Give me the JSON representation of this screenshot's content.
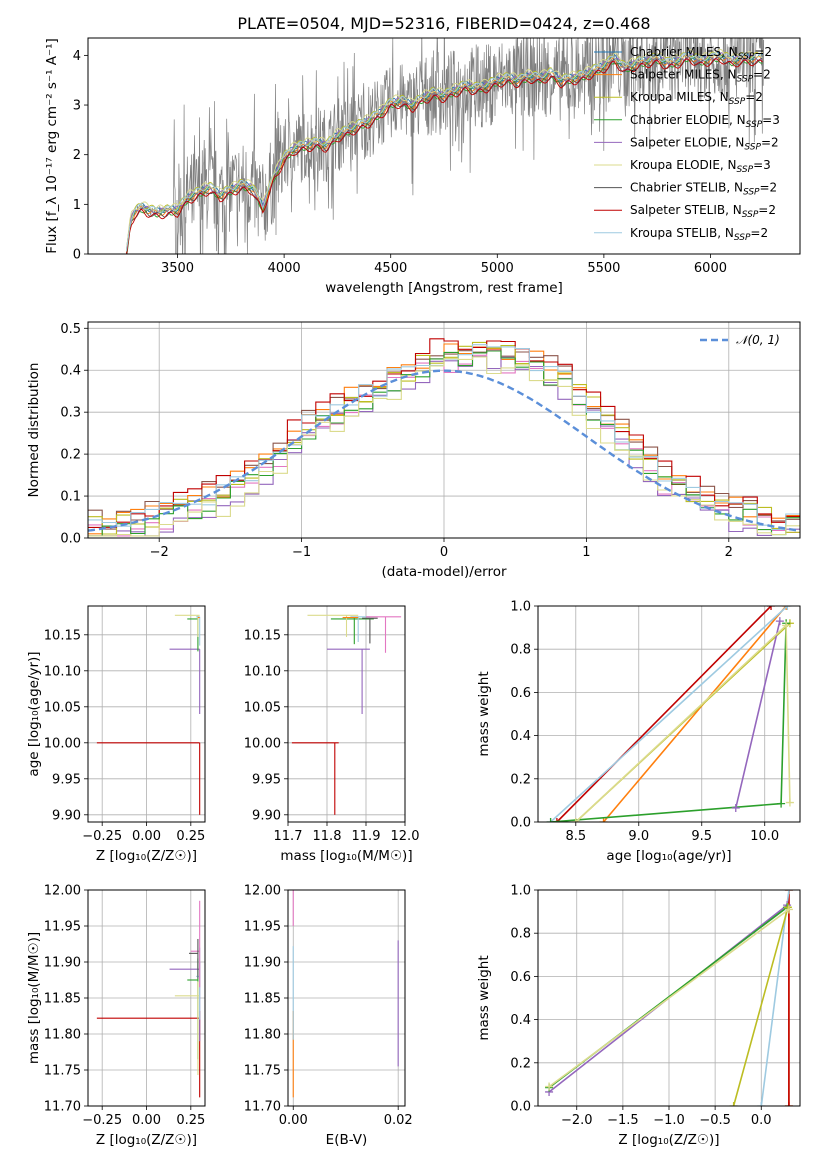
{
  "chart_data": [
    {
      "type": "line",
      "panel": "spectrum",
      "title": "PLATE=0504, MJD=52316, FIBERID=0424, z=0.468",
      "xlabel": "wavelength [Angstrom, rest frame]",
      "ylabel": "Flux [f_λ 10⁻¹⁷ erg cm⁻² s⁻¹ A⁻¹]",
      "xlim": [
        3080,
        6420
      ],
      "ylim": [
        0,
        4.35
      ],
      "xticks": [
        3500,
        4000,
        4500,
        5000,
        5500,
        6000
      ],
      "yticks": [
        0,
        1,
        2,
        3,
        4
      ],
      "grid": false,
      "legend_position": "upper right",
      "observed_spectrum": {
        "color": "#808080",
        "x": [
          3260,
          3280,
          3300,
          3330,
          3360,
          3400,
          3450,
          3500,
          3550,
          3600,
          3650,
          3700,
          3750,
          3800,
          3850,
          3900,
          3950,
          4000,
          4050,
          4100,
          4150,
          4200,
          4250,
          4300,
          4350,
          4400,
          4450,
          4500,
          4550,
          4600,
          4650,
          4700,
          4750,
          4800,
          4850,
          4900,
          4950,
          5000,
          5050,
          5100,
          5150,
          5200,
          5250,
          5300,
          5350,
          5400,
          5450,
          5500,
          5550,
          5600,
          5650,
          5700,
          5750,
          5800,
          5850,
          5900,
          5950,
          6000,
          6050,
          6100,
          6150,
          6200
        ],
        "y": [
          0.0,
          0.7,
          0.85,
          0.95,
          0.9,
          0.85,
          0.88,
          0.9,
          1.15,
          1.25,
          1.35,
          1.2,
          1.3,
          1.4,
          1.35,
          0.95,
          1.55,
          1.95,
          2.15,
          2.2,
          2.25,
          2.2,
          2.4,
          2.5,
          2.6,
          2.7,
          2.85,
          3.05,
          3.1,
          3.0,
          3.15,
          3.25,
          3.2,
          3.3,
          3.4,
          3.35,
          3.4,
          3.5,
          3.55,
          3.5,
          3.6,
          3.55,
          3.65,
          3.5,
          3.55,
          3.6,
          3.7,
          3.8,
          3.95,
          3.75,
          3.85,
          3.9,
          3.95,
          3.85,
          3.9,
          4.0,
          3.9,
          3.95,
          4.0,
          3.9,
          3.95,
          3.95
        ]
      },
      "model_x": [
        3260,
        3280,
        3300,
        3330,
        3360,
        3400,
        3450,
        3500,
        3550,
        3600,
        3650,
        3700,
        3750,
        3800,
        3850,
        3900,
        3950,
        4000,
        4050,
        4100,
        4150,
        4200,
        4250,
        4300,
        4350,
        4400,
        4450,
        4500,
        4550,
        4600,
        4650,
        4700,
        4750,
        4800,
        4850,
        4900,
        4950,
        5000,
        5050,
        5100,
        5150,
        5200,
        5250,
        5300,
        5350,
        5400,
        5450,
        5500,
        5550,
        5600,
        5650,
        5700,
        5750,
        5800,
        5850,
        5900,
        5950,
        6000,
        6050,
        6100,
        6150,
        6200
      ],
      "model_y": [
        0.0,
        0.7,
        0.85,
        0.95,
        0.9,
        0.85,
        0.88,
        0.9,
        1.15,
        1.25,
        1.35,
        1.2,
        1.3,
        1.4,
        1.35,
        0.95,
        1.55,
        1.95,
        2.15,
        2.2,
        2.25,
        2.2,
        2.4,
        2.5,
        2.6,
        2.7,
        2.85,
        3.05,
        3.1,
        3.0,
        3.15,
        3.25,
        3.2,
        3.3,
        3.4,
        3.35,
        3.4,
        3.5,
        3.55,
        3.5,
        3.6,
        3.55,
        3.65,
        3.5,
        3.55,
        3.6,
        3.7,
        3.8,
        3.95,
        3.75,
        3.85,
        3.9,
        3.95,
        3.85,
        3.9,
        4.0,
        3.9,
        3.95,
        4.0,
        3.9,
        3.95,
        3.95
      ],
      "series": [
        {
          "name": "Chabrier MILES, N_SSP=2",
          "name_main": "Chabrier MILES, N",
          "name_sub": "SSP",
          "name_tail": "=2",
          "color": "#1f77b4",
          "offset": 0.02
        },
        {
          "name": "Salpeter MILES, N_SSP=2",
          "name_main": "Salpeter MILES, N",
          "name_sub": "SSP",
          "name_tail": "=2",
          "color": "#ff7f0e",
          "offset": -0.03
        },
        {
          "name": "Kroupa MILES, N_SSP=2",
          "name_main": "Kroupa MILES, N",
          "name_sub": "SSP",
          "name_tail": "=2",
          "color": "#bcbd22",
          "offset": 0.05
        },
        {
          "name": "Chabrier ELODIE, N_SSP=3",
          "name_main": "Chabrier ELODIE, N",
          "name_sub": "SSP",
          "name_tail": "=3",
          "color": "#2ca02c",
          "offset": -0.05
        },
        {
          "name": "Salpeter ELODIE, N_SSP=2",
          "name_main": "Salpeter ELODIE, N",
          "name_sub": "SSP",
          "name_tail": "=2",
          "color": "#9467bd",
          "offset": 0.0
        },
        {
          "name": "Kroupa ELODIE, N_SSP=3",
          "name_main": "Kroupa ELODIE, N",
          "name_sub": "SSP",
          "name_tail": "=3",
          "color": "#dbdb8d",
          "offset": 0.07
        },
        {
          "name": "Chabrier STELIB, N_SSP=2",
          "name_main": "Chabrier STELIB, N",
          "name_sub": "SSP",
          "name_tail": "=2",
          "color": "#555555",
          "offset": -0.07
        },
        {
          "name": "Salpeter STELIB, N_SSP=2",
          "name_main": "Salpeter STELIB, N",
          "name_sub": "SSP",
          "name_tail": "=2",
          "color": "#c00000",
          "offset": -0.1
        },
        {
          "name": "Kroupa STELIB, N_SSP=2",
          "name_main": "Kroupa STELIB, N",
          "name_sub": "SSP",
          "name_tail": "=2",
          "color": "#9ecae1",
          "offset": 0.03
        }
      ]
    },
    {
      "type": "line",
      "panel": "residual-histograms",
      "xlabel": "(data-model)/error",
      "ylabel": "Normed distribution",
      "xlim": [
        -2.5,
        2.5
      ],
      "ylim": [
        0,
        0.515
      ],
      "xticks": [
        -2,
        -1,
        0,
        1,
        2
      ],
      "yticks": [
        0.0,
        0.1,
        0.2,
        0.3,
        0.4,
        0.5
      ],
      "grid": true,
      "legend_position": "upper right",
      "reference": {
        "name": "N(0,1)",
        "name_display": "𝒩(0, 1)",
        "color": "#5b8fd9",
        "mean": 0,
        "sigma": 1
      },
      "histogram_bins_x": [
        -2.5,
        -2.4,
        -2.3,
        -2.2,
        -2.1,
        -2.0,
        -1.9,
        -1.8,
        -1.7,
        -1.6,
        -1.5,
        -1.4,
        -1.3,
        -1.2,
        -1.1,
        -1.0,
        -0.9,
        -0.8,
        -0.7,
        -0.6,
        -0.5,
        -0.4,
        -0.3,
        -0.2,
        -0.1,
        0.0,
        0.1,
        0.2,
        0.3,
        0.4,
        0.5,
        0.6,
        0.7,
        0.8,
        0.9,
        1.0,
        1.1,
        1.2,
        1.3,
        1.4,
        1.5,
        1.6,
        1.7,
        1.8,
        1.9,
        2.0,
        2.1,
        2.2,
        2.3,
        2.4,
        2.5
      ],
      "histogram_envelope": [
        0.02,
        0.02,
        0.03,
        0.03,
        0.04,
        0.05,
        0.06,
        0.07,
        0.09,
        0.1,
        0.12,
        0.14,
        0.17,
        0.2,
        0.23,
        0.26,
        0.28,
        0.3,
        0.32,
        0.33,
        0.35,
        0.37,
        0.39,
        0.41,
        0.42,
        0.43,
        0.44,
        0.44,
        0.44,
        0.43,
        0.42,
        0.41,
        0.39,
        0.37,
        0.34,
        0.31,
        0.27,
        0.24,
        0.2,
        0.17,
        0.14,
        0.12,
        0.1,
        0.08,
        0.07,
        0.06,
        0.05,
        0.04,
        0.03,
        0.03
      ],
      "histogram_colors": [
        "#ff7f0e",
        "#e377c2",
        "#8c564b",
        "#9467bd",
        "#bcbd22",
        "#c00000",
        "#2ca02c",
        "#9ecae1",
        "#dbdb8d"
      ],
      "histogram_offsets": [
        0.015,
        -0.012,
        0.022,
        -0.02,
        0.008,
        0.03,
        -0.006,
        0.012,
        -0.025
      ]
    },
    {
      "type": "scatter",
      "panel": "age-vs-Z",
      "xlabel": "Z [log₁₀(Z/Z☉)]",
      "ylabel": "age [log₁₀(age/yr)]",
      "xlim": [
        -0.33,
        0.33
      ],
      "ylim": [
        9.89,
        10.19
      ],
      "xticks": [
        -0.25,
        0.0,
        0.25
      ],
      "yticks": [
        9.9,
        9.95,
        10.0,
        10.05,
        10.1,
        10.15
      ],
      "grid": true,
      "points": [
        {
          "x": 0.3,
          "y": 10.0,
          "xerr_low": 0.58,
          "xerr_high": 0.0,
          "yerr_low": 0.1,
          "yerr_high": 0.0,
          "color": "#c00000"
        },
        {
          "x": 0.3,
          "y": 10.13,
          "xerr_low": 0.17,
          "xerr_high": 0.0,
          "yerr_low": 0.09,
          "yerr_high": 0.0,
          "color": "#9467bd"
        },
        {
          "x": 0.29,
          "y": 10.172,
          "xerr_low": 0.06,
          "xerr_high": 0.0,
          "yerr_low": 0.045,
          "yerr_high": 0.004,
          "color": "#2ca02c"
        },
        {
          "x": 0.29,
          "y": 10.177,
          "xerr_low": 0.13,
          "xerr_high": 0.01,
          "yerr_low": 0.03,
          "yerr_high": 0.0,
          "color": "#dbdb8d"
        },
        {
          "x": 0.3,
          "y": 10.175,
          "xerr_low": 0.02,
          "xerr_high": 0.0,
          "yerr_low": 0.04,
          "yerr_high": 0.0,
          "color": "#9ecae1"
        },
        {
          "x": 0.3,
          "y": 10.174,
          "xerr_low": 0.01,
          "xerr_high": 0.0,
          "yerr_low": 0.0,
          "yerr_high": 0.0,
          "color": "#ff7f0e"
        }
      ]
    },
    {
      "type": "scatter",
      "panel": "age-vs-mass",
      "xlabel": "mass [log₁₀(M/M☉)]",
      "xlim": [
        11.7,
        12.0
      ],
      "ylim": [
        9.89,
        10.19
      ],
      "xticks": [
        11.7,
        11.8,
        11.9,
        12.0
      ],
      "yticks": [
        9.9,
        9.95,
        10.0,
        10.05,
        10.1,
        10.15
      ],
      "grid": true,
      "points": [
        {
          "x": 11.82,
          "y": 10.0,
          "xerr_low": 0.11,
          "xerr_high": 0.01,
          "yerr_low": 0.1,
          "yerr_high": 0.0,
          "color": "#c00000"
        },
        {
          "x": 11.89,
          "y": 10.13,
          "xerr_low": 0.09,
          "xerr_high": 0.02,
          "yerr_low": 0.09,
          "yerr_high": 0.0,
          "color": "#9467bd"
        },
        {
          "x": 11.87,
          "y": 10.172,
          "xerr_low": 0.06,
          "xerr_high": 0.05,
          "yerr_low": 0.035,
          "yerr_high": 0.003,
          "color": "#2ca02c"
        },
        {
          "x": 11.85,
          "y": 10.177,
          "xerr_low": 0.1,
          "xerr_high": 0.03,
          "yerr_low": 0.03,
          "yerr_high": 0.0,
          "color": "#dbdb8d"
        },
        {
          "x": 11.88,
          "y": 10.175,
          "xerr_low": 0.02,
          "xerr_high": 0.03,
          "yerr_low": 0.035,
          "yerr_high": 0.0,
          "color": "#9ecae1"
        },
        {
          "x": 11.95,
          "y": 10.175,
          "xerr_low": 0.05,
          "xerr_high": 0.04,
          "yerr_low": 0.05,
          "yerr_high": 0.0,
          "color": "#e377c2"
        },
        {
          "x": 11.91,
          "y": 10.173,
          "xerr_low": 0.02,
          "xerr_high": 0.02,
          "yerr_low": 0.035,
          "yerr_high": 0.0,
          "color": "#555555"
        },
        {
          "x": 11.86,
          "y": 10.174,
          "xerr_low": 0.02,
          "xerr_high": 0.02,
          "yerr_low": 0.0,
          "yerr_high": 0.0,
          "color": "#ff7f0e"
        }
      ]
    },
    {
      "type": "line",
      "panel": "mass-weight-vs-age",
      "xlabel": "age [log₁₀(age/yr)]",
      "ylabel": "mass weight",
      "xlim": [
        8.2,
        10.28
      ],
      "ylim": [
        0,
        1
      ],
      "xticks": [
        8.5,
        9.0,
        9.5,
        10.0
      ],
      "yticks": [
        0.0,
        0.2,
        0.4,
        0.6,
        0.8,
        1.0
      ],
      "grid": true,
      "series": [
        {
          "color": "#c00000",
          "x": [
            8.35,
            10.05
          ],
          "y": [
            0.0,
            1.0
          ]
        },
        {
          "color": "#ff7f0e",
          "x": [
            8.72,
            10.17
          ],
          "y": [
            0.0,
            1.0
          ]
        },
        {
          "color": "#9ecae1",
          "x": [
            8.3,
            10.18
          ],
          "y": [
            0.0,
            1.0
          ]
        },
        {
          "color": "#bcbd22",
          "x": [
            8.5,
            10.2
          ],
          "y": [
            0.0,
            0.92
          ]
        },
        {
          "color": "#2ca02c",
          "x": [
            8.3,
            10.13,
            10.17
          ],
          "y": [
            0.0,
            0.085,
            0.92
          ]
        },
        {
          "color": "#9467bd",
          "x": [
            9.77,
            10.12
          ],
          "y": [
            0.065,
            0.93
          ]
        },
        {
          "color": "#dbdb8d",
          "x": [
            8.5,
            10.17,
            10.2
          ],
          "y": [
            0.0,
            0.91,
            0.09
          ]
        }
      ]
    },
    {
      "type": "scatter",
      "panel": "mass-vs-Z",
      "xlabel": "Z [log₁₀(Z/Z☉)]",
      "ylabel": "mass [log₁₀(M/M☉)]",
      "xlim": [
        -0.33,
        0.33
      ],
      "ylim": [
        11.7,
        12.0
      ],
      "xticks": [
        -0.25,
        0.0,
        0.25
      ],
      "yticks": [
        11.7,
        11.75,
        11.8,
        11.85,
        11.9,
        11.95,
        12.0
      ],
      "grid": true,
      "points": [
        {
          "x": 0.3,
          "y": 11.822,
          "xerr_low": 0.58,
          "xerr_high": 0.0,
          "yerr_low": 0.11,
          "yerr_high": 0.01,
          "color": "#c00000"
        },
        {
          "x": 0.3,
          "y": 11.89,
          "xerr_low": 0.17,
          "xerr_high": 0.0,
          "yerr_low": 0.1,
          "yerr_high": 0.01,
          "color": "#9467bd"
        },
        {
          "x": 0.29,
          "y": 11.875,
          "xerr_low": 0.06,
          "xerr_high": 0.0,
          "yerr_low": 0.11,
          "yerr_high": 0.03,
          "color": "#2ca02c"
        },
        {
          "x": 0.29,
          "y": 11.853,
          "xerr_low": 0.13,
          "xerr_high": 0.01,
          "yerr_low": 0.11,
          "yerr_high": 0.02,
          "color": "#dbdb8d"
        },
        {
          "x": 0.3,
          "y": 11.88,
          "xerr_low": 0.02,
          "xerr_high": 0.0,
          "yerr_low": 0.06,
          "yerr_high": 0.04,
          "color": "#9ecae1"
        },
        {
          "x": 0.3,
          "y": 11.915,
          "xerr_low": 0.05,
          "xerr_high": 0.0,
          "yerr_low": 0.05,
          "yerr_high": 0.07,
          "color": "#e377c2"
        },
        {
          "x": 0.29,
          "y": 11.912,
          "xerr_low": 0.05,
          "xerr_high": 0.0,
          "yerr_low": 0.035,
          "yerr_high": 0.02,
          "color": "#555555"
        }
      ]
    },
    {
      "type": "scatter",
      "panel": "mass-vs-ebv",
      "xlabel": "E(B-V)",
      "xlim": [
        -0.001,
        0.0213
      ],
      "ylim": [
        11.7,
        12.0
      ],
      "xticks": [
        0.0,
        0.02
      ],
      "xtick_labels": [
        "0.00",
        "0.02"
      ],
      "yticks": [
        11.7,
        11.75,
        11.8,
        11.85,
        11.9,
        11.95,
        12.0
      ],
      "grid": true,
      "points": [
        {
          "x": 0.0,
          "y": 11.822,
          "yerr_low": 0.11,
          "yerr_high": 0.01,
          "color": "#ff7f0e"
        },
        {
          "x": 0.0,
          "y": 11.872,
          "yerr_low": 0.08,
          "yerr_high": 0.05,
          "color": "#9ecae1"
        },
        {
          "x": 0.0,
          "y": 11.96,
          "yerr_low": 0.01,
          "yerr_high": 0.04,
          "color": "#e377c2"
        },
        {
          "x": 0.02,
          "y": 11.84,
          "yerr_low": 0.085,
          "yerr_high": 0.09,
          "color": "#9467bd"
        }
      ]
    },
    {
      "type": "line",
      "panel": "mass-weight-vs-Z",
      "xlabel": "Z [log₁₀(Z/Z☉)]",
      "ylabel": "mass weight",
      "xlim": [
        -2.42,
        0.42
      ],
      "ylim": [
        0,
        1
      ],
      "xticks": [
        -2.0,
        -1.5,
        -1.0,
        -0.5,
        0.0
      ],
      "yticks": [
        0.0,
        0.2,
        0.4,
        0.6,
        0.8,
        1.0
      ],
      "grid": true,
      "series": [
        {
          "color": "#ff7f0e",
          "x": [
            0.3,
            0.3
          ],
          "y": [
            0.0,
            1.0
          ]
        },
        {
          "color": "#c00000",
          "x": [
            0.3,
            0.3
          ],
          "y": [
            0.0,
            1.0
          ]
        },
        {
          "color": "#9ecae1",
          "x": [
            0.0,
            0.3
          ],
          "y": [
            0.0,
            1.0
          ]
        },
        {
          "color": "#9467bd",
          "x": [
            -2.3,
            0.28
          ],
          "y": [
            0.065,
            0.93
          ]
        },
        {
          "color": "#2ca02c",
          "x": [
            -2.3,
            0.28
          ],
          "y": [
            0.085,
            0.92
          ]
        },
        {
          "color": "#bcbd22",
          "x": [
            -0.3,
            0.29
          ],
          "y": [
            0.0,
            0.92
          ]
        },
        {
          "color": "#dbdb8d",
          "x": [
            -2.3,
            0.3
          ],
          "y": [
            0.09,
            0.91
          ]
        }
      ]
    }
  ]
}
